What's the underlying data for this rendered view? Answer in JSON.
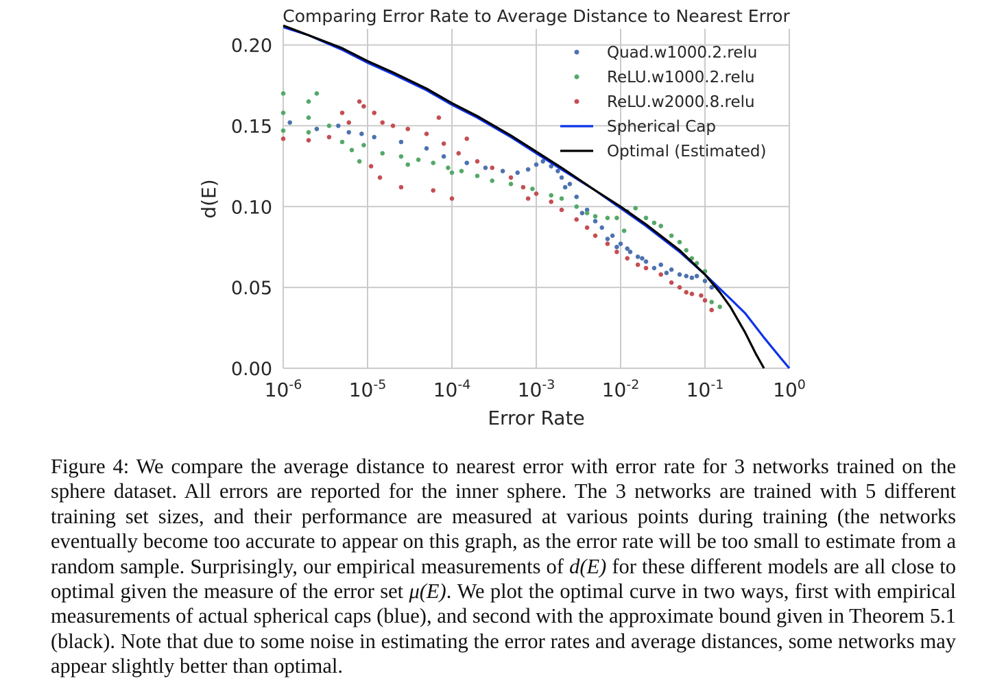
{
  "chart_data": {
    "type": "scatter",
    "title": "Comparing Error Rate to Average Distance to Nearest Error",
    "xlabel": "Error Rate",
    "ylabel": "d(E)",
    "xscale": "log",
    "xlim": [
      1e-06,
      1
    ],
    "ylim": [
      0,
      0.21
    ],
    "x_ticks": [
      {
        "base": "10",
        "exp": "-6"
      },
      {
        "base": "10",
        "exp": "-5"
      },
      {
        "base": "10",
        "exp": "-4"
      },
      {
        "base": "10",
        "exp": "-3"
      },
      {
        "base": "10",
        "exp": "-2"
      },
      {
        "base": "10",
        "exp": "-1"
      },
      {
        "base": "10",
        "exp": "0"
      }
    ],
    "y_ticks": [
      "0.00",
      "0.05",
      "0.10",
      "0.15",
      "0.20"
    ],
    "grid": true,
    "legend_position": "top-right",
    "series": [
      {
        "name": "Quad.w1000.2.relu",
        "kind": "scatter",
        "color": "#4c72b0",
        "points": [
          [
            1.2e-06,
            0.152
          ],
          [
            2.5e-06,
            0.148
          ],
          [
            4.5e-06,
            0.15
          ],
          [
            6e-06,
            0.146
          ],
          [
            8.5e-06,
            0.145
          ],
          [
            1.2e-05,
            0.143
          ],
          [
            2.5e-05,
            0.14
          ],
          [
            5e-05,
            0.136
          ],
          [
            8e-05,
            0.131
          ],
          [
            0.00015,
            0.127
          ],
          [
            0.00025,
            0.124
          ],
          [
            0.0004,
            0.122
          ],
          [
            0.0006,
            0.121
          ],
          [
            0.0008,
            0.123
          ],
          [
            0.001,
            0.126
          ],
          [
            0.0012,
            0.128
          ],
          [
            0.0015,
            0.125
          ],
          [
            0.002,
            0.118
          ],
          [
            0.0025,
            0.114
          ],
          [
            0.003,
            0.106
          ],
          [
            0.004,
            0.098
          ],
          [
            0.005,
            0.091
          ],
          [
            0.006,
            0.087
          ],
          [
            0.008,
            0.082
          ],
          [
            0.01,
            0.077
          ],
          [
            0.013,
            0.072
          ],
          [
            0.016,
            0.069
          ],
          [
            0.02,
            0.066
          ],
          [
            0.025,
            0.062
          ],
          [
            0.03,
            0.064
          ],
          [
            0.04,
            0.061
          ],
          [
            0.05,
            0.058
          ],
          [
            0.06,
            0.057
          ],
          [
            0.08,
            0.057
          ],
          [
            0.1,
            0.054
          ],
          [
            0.12,
            0.05
          ],
          [
            0.0018,
            0.122
          ],
          [
            0.0022,
            0.112
          ],
          [
            0.0035,
            0.096
          ],
          [
            0.007,
            0.08
          ],
          [
            0.009,
            0.075
          ],
          [
            0.012,
            0.074
          ],
          [
            0.018,
            0.068
          ],
          [
            0.035,
            0.059
          ],
          [
            0.07,
            0.056
          ]
        ]
      },
      {
        "name": "ReLU.w1000.2.relu",
        "kind": "scatter",
        "color": "#55a868",
        "points": [
          [
            1e-06,
            0.17
          ],
          [
            1e-06,
            0.158
          ],
          [
            1e-06,
            0.147
          ],
          [
            2e-06,
            0.165
          ],
          [
            2e-06,
            0.155
          ],
          [
            2e-06,
            0.146
          ],
          [
            3.5e-06,
            0.15
          ],
          [
            5e-06,
            0.14
          ],
          [
            6.5e-06,
            0.135
          ],
          [
            9e-06,
            0.138
          ],
          [
            1.5e-05,
            0.133
          ],
          [
            2.5e-05,
            0.131
          ],
          [
            4e-05,
            0.129
          ],
          [
            6e-05,
            0.127
          ],
          [
            9e-05,
            0.124
          ],
          [
            0.00013,
            0.122
          ],
          [
            0.0002,
            0.119
          ],
          [
            0.0003,
            0.116
          ],
          [
            0.0005,
            0.114
          ],
          [
            0.0009,
            0.111
          ],
          [
            0.0015,
            0.107
          ],
          [
            0.002,
            0.105
          ],
          [
            0.003,
            0.1
          ],
          [
            0.004,
            0.096
          ],
          [
            0.005,
            0.094
          ],
          [
            0.007,
            0.093
          ],
          [
            0.009,
            0.093
          ],
          [
            0.012,
            0.097
          ],
          [
            0.015,
            0.099
          ],
          [
            0.02,
            0.093
          ],
          [
            0.025,
            0.09
          ],
          [
            0.03,
            0.088
          ],
          [
            0.04,
            0.082
          ],
          [
            0.05,
            0.078
          ],
          [
            0.06,
            0.073
          ],
          [
            0.07,
            0.068
          ],
          [
            0.08,
            0.065
          ],
          [
            0.1,
            0.06
          ],
          [
            0.12,
            0.041
          ],
          [
            0.15,
            0.038
          ],
          [
            2.5e-06,
            0.17
          ],
          [
            8e-06,
            0.128
          ],
          [
            3e-05,
            0.126
          ],
          [
            0.0001,
            0.121
          ],
          [
            0.011,
            0.085
          ]
        ]
      },
      {
        "name": "ReLU.w2000.8.relu",
        "kind": "scatter",
        "color": "#c44e52",
        "points": [
          [
            1e-06,
            0.142
          ],
          [
            2e-06,
            0.141
          ],
          [
            3.5e-06,
            0.143
          ],
          [
            5e-06,
            0.158
          ],
          [
            6e-06,
            0.152
          ],
          [
            8e-06,
            0.165
          ],
          [
            9e-06,
            0.162
          ],
          [
            1.2e-05,
            0.158
          ],
          [
            1.5e-05,
            0.152
          ],
          [
            2e-05,
            0.15
          ],
          [
            3e-05,
            0.148
          ],
          [
            5e-05,
            0.145
          ],
          [
            8e-05,
            0.139
          ],
          [
            0.00012,
            0.133
          ],
          [
            0.0002,
            0.128
          ],
          [
            0.0003,
            0.124
          ],
          [
            0.0005,
            0.118
          ],
          [
            0.0007,
            0.112
          ],
          [
            0.001,
            0.108
          ],
          [
            0.0015,
            0.103
          ],
          [
            0.002,
            0.098
          ],
          [
            0.003,
            0.092
          ],
          [
            0.004,
            0.087
          ],
          [
            0.005,
            0.082
          ],
          [
            0.007,
            0.077
          ],
          [
            0.009,
            0.072
          ],
          [
            0.012,
            0.068
          ],
          [
            0.016,
            0.064
          ],
          [
            0.02,
            0.062
          ],
          [
            0.03,
            0.058
          ],
          [
            0.04,
            0.053
          ],
          [
            0.05,
            0.05
          ],
          [
            0.06,
            0.047
          ],
          [
            0.07,
            0.046
          ],
          [
            0.09,
            0.045
          ],
          [
            0.1,
            0.042
          ],
          [
            0.12,
            0.036
          ],
          [
            1.1e-05,
            0.125
          ],
          [
            1.4e-05,
            0.118
          ],
          [
            2.5e-05,
            0.112
          ],
          [
            6e-05,
            0.11
          ],
          [
            0.0001,
            0.105
          ],
          [
            7e-05,
            0.155
          ],
          [
            0.00015,
            0.142
          ],
          [
            0.0008,
            0.105
          ]
        ]
      },
      {
        "name": "Spherical Cap",
        "kind": "line",
        "color": "#0c32e8",
        "x": [
          1e-06,
          2e-06,
          5e-06,
          1e-05,
          2e-05,
          5e-05,
          0.0001,
          0.0002,
          0.0005,
          0.001,
          0.002,
          0.005,
          0.01,
          0.02,
          0.05,
          0.1,
          0.2,
          0.3,
          0.5,
          0.8,
          1.0
        ],
        "y": [
          0.211,
          0.206,
          0.197,
          0.189,
          0.182,
          0.172,
          0.163,
          0.155,
          0.143,
          0.133,
          0.123,
          0.11,
          0.099,
          0.088,
          0.072,
          0.058,
          0.043,
          0.034,
          0.019,
          0.006,
          0.0
        ]
      },
      {
        "name": "Optimal (Estimated)",
        "kind": "line",
        "color": "#000000",
        "x": [
          1e-06,
          2e-06,
          5e-06,
          1e-05,
          2e-05,
          5e-05,
          0.0001,
          0.0002,
          0.0005,
          0.001,
          0.002,
          0.005,
          0.01,
          0.02,
          0.05,
          0.1,
          0.15,
          0.2,
          0.3,
          0.4,
          0.5
        ],
        "y": [
          0.212,
          0.206,
          0.198,
          0.19,
          0.183,
          0.173,
          0.164,
          0.156,
          0.144,
          0.134,
          0.124,
          0.11,
          0.1,
          0.089,
          0.073,
          0.058,
          0.047,
          0.038,
          0.022,
          0.009,
          0.0
        ]
      }
    ]
  },
  "caption": {
    "part1": "Figure 4: We compare the average distance to nearest error with error rate for 3 networks trained on the sphere dataset. All errors are reported for the inner sphere. The 3 networks are trained with 5 different training set sizes, and their performance are measured at various points during training (the networks eventually become too accurate to appear on this graph, as the error rate will be too small to estimate from a random sample. Surprisingly, our empirical measurements of ",
    "math1": "d(E)",
    "part2": " for these different models are all close to optimal given the measure of the error set ",
    "math2": "μ(E)",
    "part3": ". We plot the optimal curve in two ways, first with empirical measurements of actual spherical caps (blue), and second with the approximate bound given in Theorem 5.1 (black). Note that due to some noise in estimating the error rates and average distances, some networks may appear slightly better than optimal."
  }
}
